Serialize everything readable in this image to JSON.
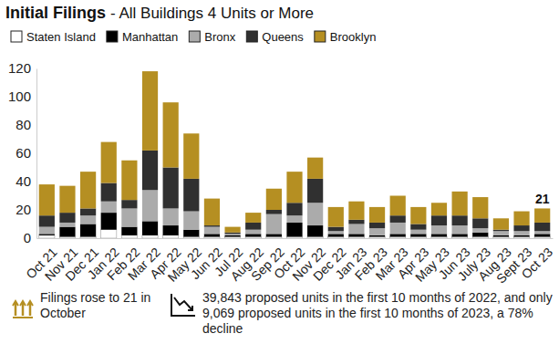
{
  "chart_data": {
    "type": "bar",
    "stacked": true,
    "title": "Initial Filings",
    "subtitle": "- All Buildings 4 Units or More",
    "legend": "top-left",
    "grid": false,
    "categories": [
      "Oct 21",
      "Nov 21",
      "Dec 21",
      "Jan 22",
      "Feb 22",
      "Mar 22",
      "Apr 22",
      "May 22",
      "Jun 22",
      "Jul 22",
      "Aug 22",
      "Sep 22",
      "Oct 22",
      "Nov 22",
      "Dec 22",
      "Jan 23",
      "Feb 23",
      "Mar 23",
      "Apr 23",
      "May 23",
      "Jun 23",
      "July 23",
      "Aug 23",
      "Sept 23",
      "Oct 23"
    ],
    "series": [
      {
        "name": "Staten Island",
        "color": "#ffffff",
        "values": [
          2,
          1,
          1,
          6,
          2,
          2,
          2,
          1,
          1,
          1,
          1,
          1,
          1,
          1,
          1,
          1,
          1,
          1,
          1,
          1,
          1,
          1,
          1,
          1,
          1
        ]
      },
      {
        "name": "Manhattan",
        "color": "#000000",
        "values": [
          1,
          7,
          9,
          12,
          6,
          10,
          7,
          5,
          2,
          1,
          2,
          2,
          10,
          8,
          2,
          2,
          1,
          2,
          2,
          2,
          2,
          3,
          1,
          1,
          2
        ]
      },
      {
        "name": "Bronx",
        "color": "#ababab",
        "values": [
          5,
          3,
          6,
          8,
          13,
          22,
          12,
          13,
          5,
          1,
          3,
          14,
          5,
          16,
          2,
          7,
          5,
          8,
          3,
          6,
          6,
          3,
          3,
          3,
          2
        ]
      },
      {
        "name": "Queens",
        "color": "#303030",
        "values": [
          8,
          7,
          5,
          13,
          6,
          28,
          29,
          23,
          1,
          1,
          5,
          3,
          9,
          17,
          3,
          3,
          4,
          5,
          4,
          7,
          7,
          7,
          1,
          4,
          6
        ]
      },
      {
        "name": "Brooklyn",
        "color": "#b58f22",
        "values": [
          22,
          19,
          26,
          29,
          28,
          56,
          46,
          32,
          19,
          4,
          7,
          15,
          22,
          15,
          14,
          13,
          11,
          14,
          12,
          9,
          17,
          15,
          8,
          10,
          10
        ]
      }
    ],
    "ylim": [
      0,
      120
    ],
    "yticks": [
      0,
      20,
      40,
      60,
      80,
      100,
      120
    ],
    "annotations": [
      {
        "text": "21",
        "category": "Oct 23",
        "value": 21
      }
    ],
    "notes": [
      "Filings rose to 21 in October",
      "39,843 proposed units in the first 10 months of 2022, and only 9,069 proposed units in the first 10 months of 2023, a 78% decline"
    ]
  }
}
